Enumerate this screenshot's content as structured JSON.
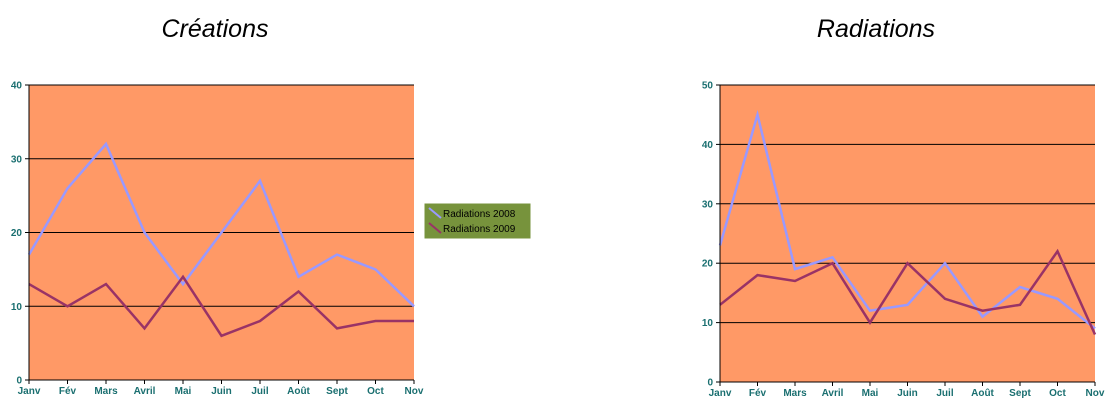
{
  "chart_data": [
    {
      "type": "line",
      "title": "Créations",
      "categories": [
        "Janv",
        "Fév",
        "Mars",
        "Avril",
        "Mai",
        "Juin",
        "Juil",
        "Août",
        "Sept",
        "Oct",
        "Nov"
      ],
      "series": [
        {
          "name": "Radiations 2008",
          "color": "#9999ff",
          "values": [
            17,
            26,
            32,
            20,
            13,
            20,
            27,
            14,
            17,
            15,
            10
          ]
        },
        {
          "name": "Radiations 2009",
          "color": "#993366",
          "values": [
            13,
            10,
            13,
            7,
            14,
            6,
            8,
            12,
            7,
            8,
            8
          ]
        }
      ],
      "ylim": [
        0,
        40
      ],
      "yticks": [
        0,
        10,
        20,
        30,
        40
      ],
      "grid": true,
      "legend": "right",
      "plot_bg": "#ff9966"
    },
    {
      "type": "line",
      "title": "Radiations",
      "categories": [
        "Janv",
        "Fév",
        "Mars",
        "Avril",
        "Mai",
        "Juin",
        "Juil",
        "Août",
        "Sept",
        "Oct",
        "Nov"
      ],
      "series": [
        {
          "color": "#9999ff",
          "values": [
            23,
            45,
            19,
            21,
            12,
            13,
            20,
            11,
            16,
            14,
            9
          ]
        },
        {
          "color": "#993366",
          "values": [
            13,
            18,
            17,
            20,
            10,
            20,
            14,
            12,
            13,
            22,
            8
          ]
        }
      ],
      "ylim": [
        0,
        50
      ],
      "yticks": [
        0,
        10,
        20,
        30,
        40,
        50
      ],
      "grid": true,
      "legend": "none",
      "plot_bg": "#ff9966"
    }
  ],
  "colors": {
    "tick_text": "#1a6f70",
    "legend_bg": "#77933c",
    "axis": "#000000"
  }
}
